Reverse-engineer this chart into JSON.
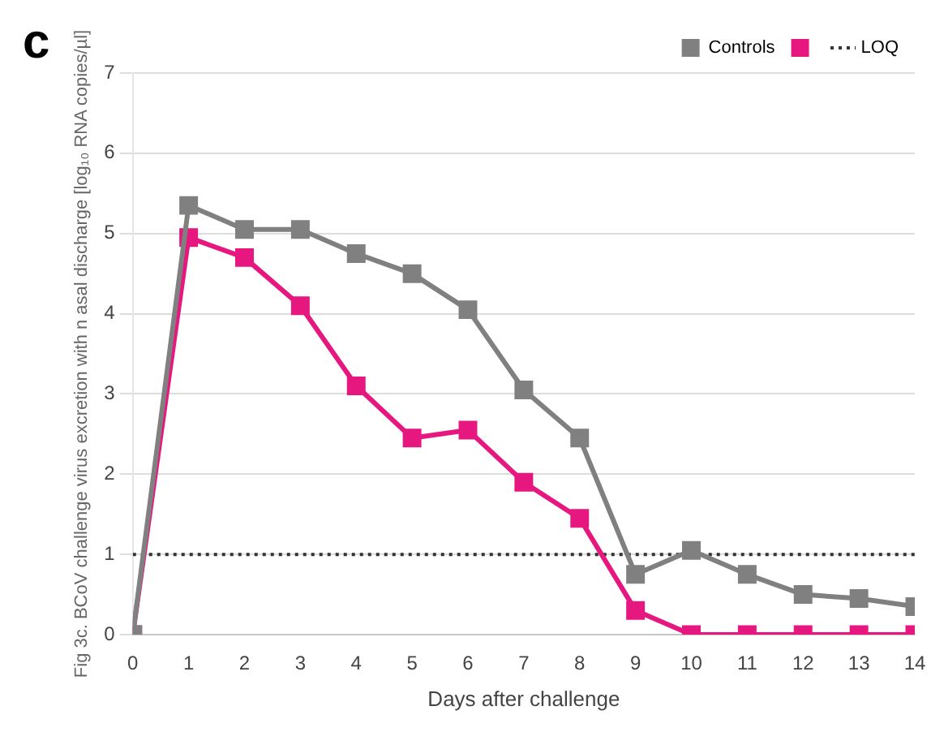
{
  "chart_data": {
    "type": "line",
    "ylabel": "Fig 3c. BCoV challenge virus excretion with n asal discharge [log₁₀ RNA copies/µl]",
    "xlabel": "Days after challenge",
    "annotations": [
      "c"
    ],
    "x": [
      0,
      1,
      2,
      3,
      4,
      5,
      6,
      7,
      8,
      9,
      10,
      11,
      12,
      13,
      14
    ],
    "series": [
      {
        "name": "Controls",
        "color": "#808080",
        "values": [
          0,
          5.35,
          5.05,
          5.05,
          4.75,
          4.5,
          4.05,
          3.05,
          2.45,
          0.75,
          1.05,
          0.75,
          0.5,
          0.45,
          0.35
        ]
      },
      {
        "color": "#e6177f",
        "values": [
          0,
          4.95,
          4.7,
          4.1,
          3.1,
          2.45,
          2.55,
          1.9,
          1.45,
          0.3,
          0,
          0,
          0,
          0,
          0
        ]
      }
    ],
    "ref_lines": [
      {
        "axis": "y",
        "value": 1,
        "label": "LOQ",
        "color": "#333333",
        "line_style": "dotted"
      }
    ],
    "xlim": [
      0,
      14
    ],
    "xticks": [
      0,
      1,
      2,
      3,
      4,
      5,
      6,
      7,
      8,
      9,
      10,
      11,
      12,
      13,
      14
    ],
    "ylim": [
      0,
      7
    ],
    "yticks": [
      0,
      1,
      2,
      3,
      4,
      5,
      6,
      7
    ],
    "grid": "y",
    "legend": "top right",
    "marker": "square",
    "line_style": "solid"
  }
}
